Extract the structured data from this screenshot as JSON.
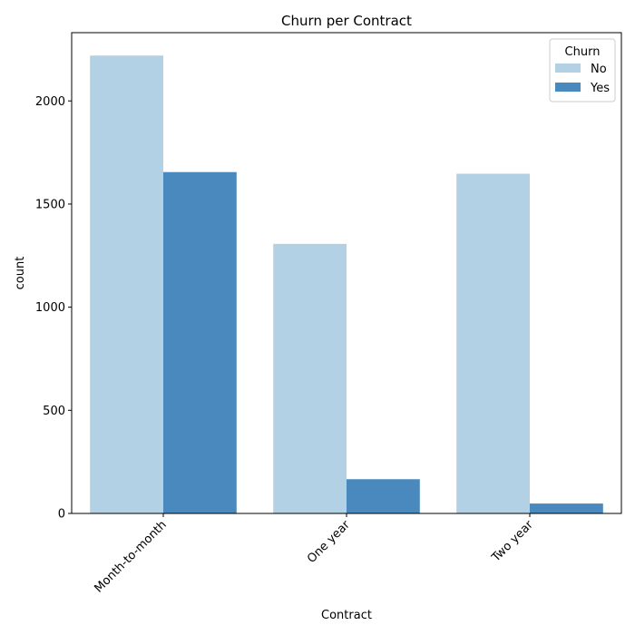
{
  "chart_data": {
    "type": "bar",
    "title": "Churn per Contract",
    "xlabel": "Contract",
    "ylabel": "count",
    "categories": [
      "Month-to-month",
      "One year",
      "Two year"
    ],
    "series": [
      {
        "name": "No",
        "values": [
          2220,
          1307,
          1647
        ],
        "color": "#b3d1e5"
      },
      {
        "name": "Yes",
        "values": [
          1655,
          166,
          48
        ],
        "color": "#4a89bd"
      }
    ],
    "yticks": [
      0,
      500,
      1000,
      1500,
      2000
    ],
    "ylim": [
      0,
      2331
    ],
    "legend": {
      "title": "Churn",
      "placement": "top-right"
    },
    "grid": false
  }
}
